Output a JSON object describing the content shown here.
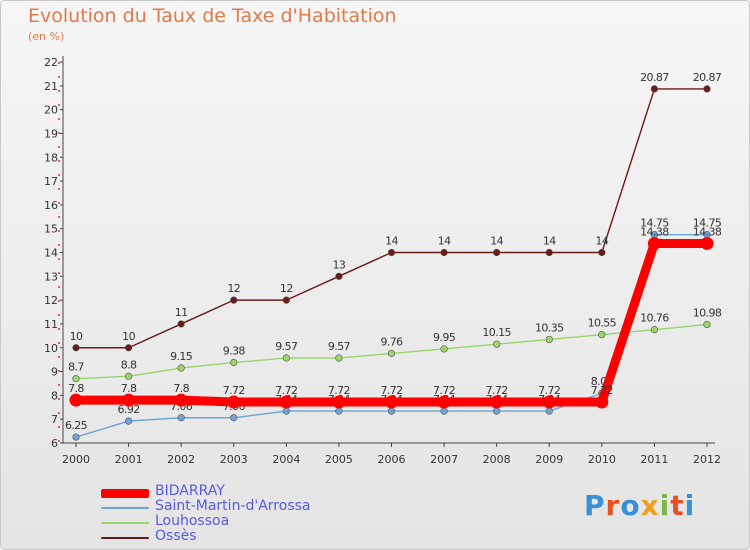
{
  "title": "Evolution du Taux de Taxe d'Habitation",
  "subtitle": "(en %)",
  "brand": {
    "text": "Proxiti",
    "letter_colors": [
      "#3a8fd6",
      "#e8501f",
      "#3a8fd6",
      "#f0a020",
      "#7ab648",
      "#e8501f",
      "#3a8fd6"
    ]
  },
  "chart_data": {
    "type": "line",
    "title": "Evolution du Taux de Taxe d'Habitation",
    "ylabel": "(en %)",
    "xlabel": "",
    "x": [
      "2000",
      "2001",
      "2002",
      "2003",
      "2004",
      "2005",
      "2006",
      "2007",
      "2008",
      "2009",
      "2010",
      "2011",
      "2012"
    ],
    "ylim": [
      6,
      22
    ],
    "yticks": [
      "6",
      "7",
      "8",
      "9",
      "10",
      "11",
      "12",
      "13",
      "14",
      "15",
      "16",
      "17",
      "18",
      "19",
      "20",
      "21",
      "22"
    ],
    "grid": false,
    "legend_position": "bottom-left",
    "series": [
      {
        "name": "Ossès",
        "color": "#6b1a1a",
        "values": [
          10,
          10,
          11,
          12,
          12,
          13,
          14,
          14,
          14,
          14,
          14,
          20.87,
          20.87
        ],
        "labels": [
          "10",
          "10",
          "11",
          "12",
          "12",
          "13",
          "14",
          "14",
          "14",
          "14",
          "14",
          "20.87",
          "20.87"
        ]
      },
      {
        "name": "Louhossoa",
        "color": "#9ad46a",
        "values": [
          8.7,
          8.8,
          9.15,
          9.38,
          9.57,
          9.57,
          9.76,
          9.95,
          10.15,
          10.35,
          10.55,
          10.76,
          10.98
        ],
        "labels": [
          "8.7",
          "8.8",
          "9.15",
          "9.38",
          "9.57",
          "9.57",
          "9.76",
          "9.95",
          "10.15",
          "10.35",
          "10.55",
          "10.76",
          "10.98"
        ]
      },
      {
        "name": "Saint-Martin-d'Arrossa",
        "color": "#6aa4d8",
        "values": [
          6.25,
          6.92,
          7.06,
          7.06,
          7.34,
          7.34,
          7.34,
          7.34,
          7.34,
          7.34,
          8.09,
          14.75,
          14.75
        ],
        "labels": [
          "6.25",
          "6.92",
          "7.06",
          "7.06",
          "7.34",
          "7.34",
          "7.34",
          "7.34",
          "7.34",
          "7.34",
          "8.09",
          "14.75",
          "14.75"
        ]
      },
      {
        "name": "BIDARRAY",
        "color": "#ff0000",
        "values": [
          7.8,
          7.8,
          7.8,
          7.72,
          7.72,
          7.72,
          7.72,
          7.72,
          7.72,
          7.72,
          7.72,
          14.38,
          14.38
        ],
        "labels": [
          "7.8",
          "7.8",
          "7.8",
          "7.72",
          "7.72",
          "7.72",
          "7.72",
          "7.72",
          "7.72",
          "7.72",
          "7.72",
          "14.38",
          "14.38"
        ]
      }
    ],
    "legend": [
      "BIDARRAY",
      "Saint-Martin-d'Arrossa",
      "Louhossoa",
      "Ossès"
    ]
  }
}
